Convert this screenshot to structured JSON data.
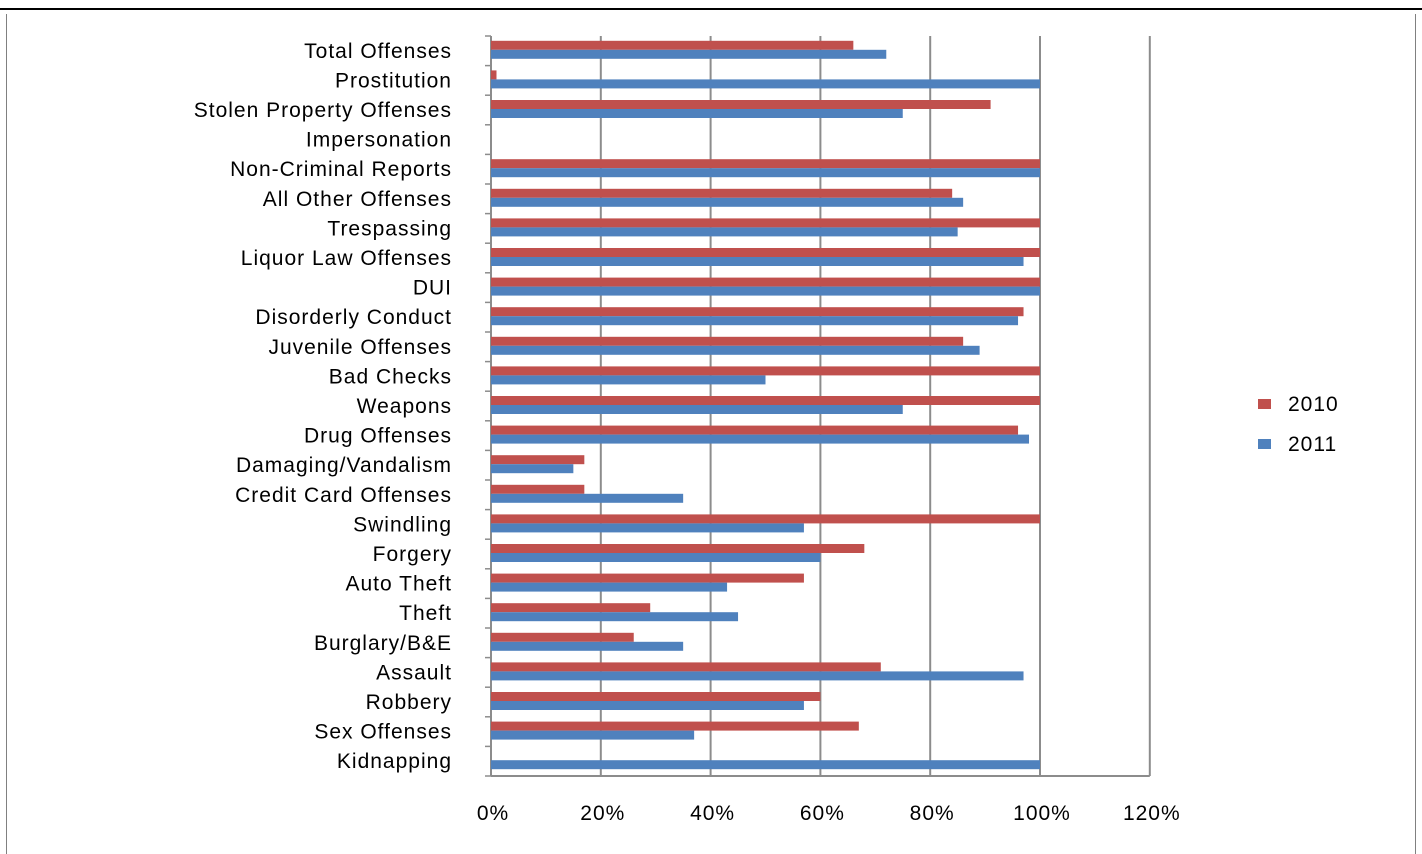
{
  "chart_data": {
    "type": "bar",
    "orientation": "horizontal",
    "categories": [
      "Total Offenses",
      "Prostitution",
      "Stolen Property Offenses",
      "Impersonation",
      "Non-Criminal Reports",
      "All Other Offenses",
      "Trespassing",
      "Liquor Law Offenses",
      "DUI",
      "Disorderly Conduct",
      "Juvenile Offenses",
      "Bad Checks",
      "Weapons",
      "Drug Offenses",
      "Damaging/Vandalism",
      "Credit Card Offenses",
      "Swindling",
      "Forgery",
      "Auto Theft",
      "Theft",
      "Burglary/B&E",
      "Assault",
      "Robbery",
      "Sex Offenses",
      "Kidnapping"
    ],
    "series": [
      {
        "name": "2010",
        "color": "#c0504d",
        "values": [
          66,
          1,
          91,
          0,
          100,
          84,
          100,
          100,
          100,
          97,
          86,
          100,
          100,
          96,
          17,
          17,
          100,
          68,
          57,
          29,
          26,
          71,
          60,
          67,
          0
        ]
      },
      {
        "name": "2011",
        "color": "#4f81bd",
        "values": [
          72,
          100,
          75,
          0,
          100,
          86,
          85,
          97,
          100,
          96,
          89,
          50,
          75,
          98,
          15,
          35,
          57,
          60,
          43,
          45,
          35,
          97,
          57,
          37,
          100
        ]
      }
    ],
    "xlim": [
      0,
      120
    ],
    "xticks": [
      "0%",
      "20%",
      "40%",
      "60%",
      "80%",
      "100%",
      "120%"
    ],
    "grid": "vertical",
    "legend": "right"
  }
}
